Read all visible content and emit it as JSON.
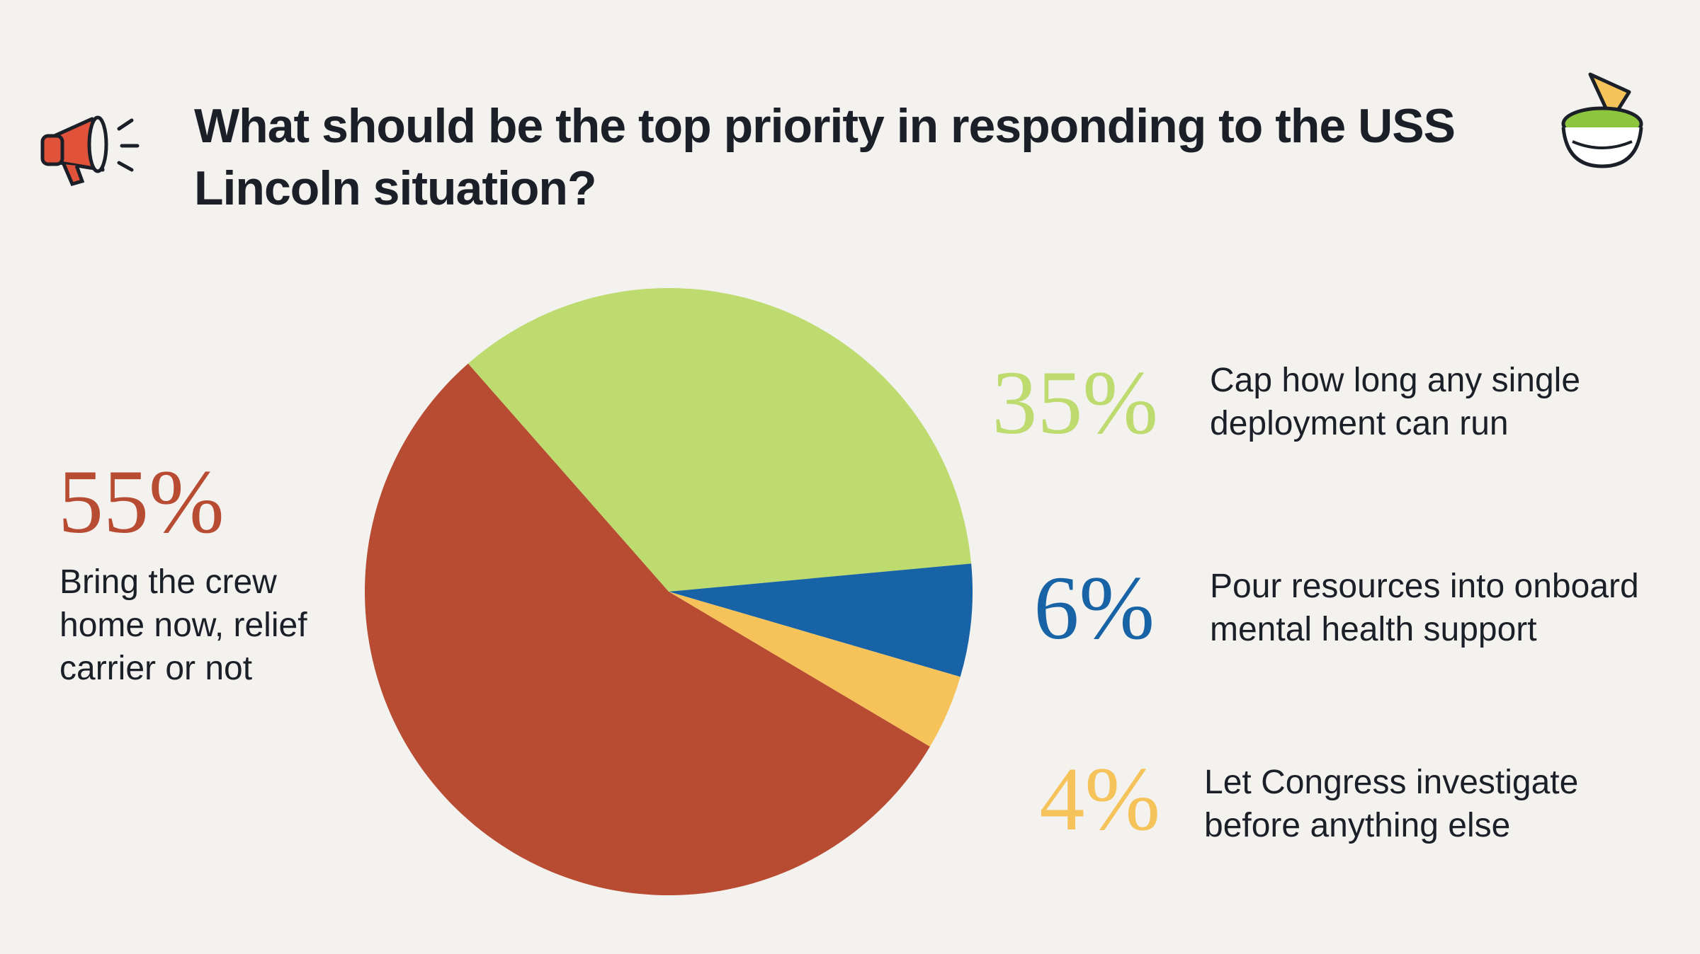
{
  "chart_data": {
    "type": "pie",
    "title": "What should be the top priority in responding to the USS Lincoln situation?",
    "categories": [
      "Cap how long any single deployment can run",
      "Pour resources into onboard mental health support",
      "Let Congress investigate before anything else",
      "Bring the crew home now, relief carrier or not"
    ],
    "values": [
      35,
      6,
      4,
      55
    ],
    "value_labels": [
      "35%",
      "6%",
      "4%",
      "55%"
    ],
    "colors": [
      "#bedb6f",
      "#1863a6",
      "#f6c35b",
      "#b84c33"
    ]
  }
}
